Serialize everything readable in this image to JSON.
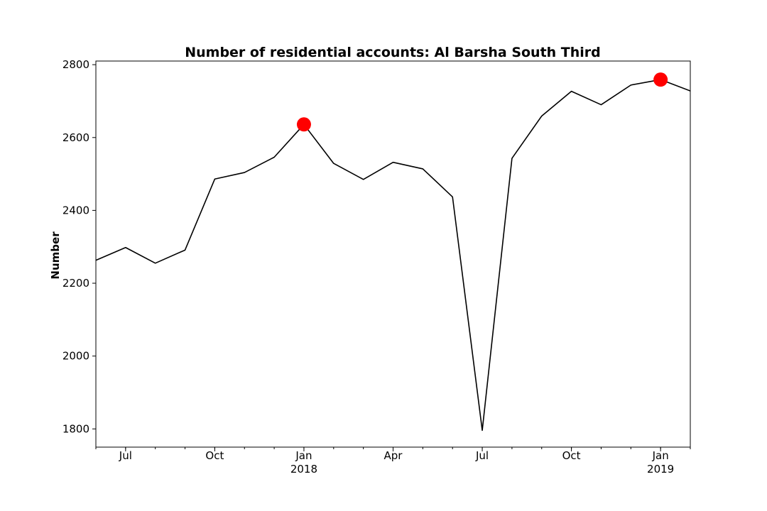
{
  "chart_data": {
    "type": "line",
    "title": "Number of residential accounts: Al Barsha South Third",
    "xlabel": "",
    "ylabel": "Number",
    "x": [
      "2017-06",
      "2017-07",
      "2017-08",
      "2017-09",
      "2017-10",
      "2017-11",
      "2017-12",
      "2018-01",
      "2018-02",
      "2018-03",
      "2018-04",
      "2018-05",
      "2018-06",
      "2018-07",
      "2018-08",
      "2018-09",
      "2018-10",
      "2018-11",
      "2018-12",
      "2019-01",
      "2019-02"
    ],
    "series": [
      {
        "values": [
          2263,
          2298,
          2255,
          2291,
          2486,
          2504,
          2546,
          2636,
          2529,
          2485,
          2532,
          2514,
          2437,
          1796,
          2543,
          2659,
          2727,
          2690,
          2744,
          2759,
          2728
        ],
        "color": "#000000"
      }
    ],
    "highlights": [
      {
        "x": "2018-01",
        "y": 2636,
        "color": "#ff0000"
      },
      {
        "x": "2019-01",
        "y": 2759,
        "color": "#ff0000"
      }
    ],
    "xlim": [
      "2017-06",
      "2019-02"
    ],
    "ylim": [
      1750,
      2810
    ],
    "y_ticks": [
      1800,
      2000,
      2200,
      2400,
      2600,
      2800
    ],
    "x_ticks": [
      {
        "x": "2017-07",
        "label": "Jul",
        "sub": ""
      },
      {
        "x": "2017-10",
        "label": "Oct",
        "sub": ""
      },
      {
        "x": "2018-01",
        "label": "Jan",
        "sub": "2018"
      },
      {
        "x": "2018-04",
        "label": "Apr",
        "sub": ""
      },
      {
        "x": "2018-07",
        "label": "Jul",
        "sub": ""
      },
      {
        "x": "2018-10",
        "label": "Oct",
        "sub": ""
      },
      {
        "x": "2019-01",
        "label": "Jan",
        "sub": "2019"
      }
    ],
    "grid": false,
    "legend": "none"
  }
}
